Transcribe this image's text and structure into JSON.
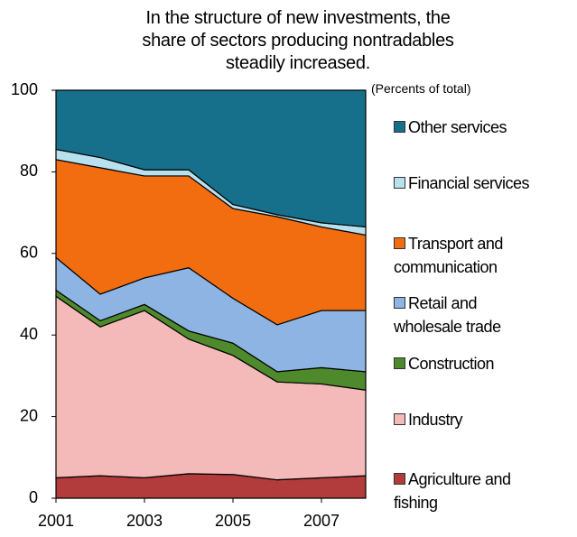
{
  "chart_data": {
    "type": "stacked_area",
    "title": "In the structure of new investments, the share of sectors producing nontradables steadily increased.",
    "subtitle": "(Percents of total)",
    "x": [
      2001,
      2002,
      2003,
      2004,
      2005,
      2006,
      2007,
      2008
    ],
    "xlim": [
      2001,
      2008
    ],
    "xticks": [
      2001,
      2003,
      2005,
      2007
    ],
    "ylim": [
      0,
      100
    ],
    "yticks": [
      0,
      20,
      40,
      60,
      80,
      100
    ],
    "series": [
      {
        "name": "Agriculture and fishing",
        "color": "#b23b3b",
        "values": [
          5,
          5.5,
          5,
          6,
          5.8,
          4.5,
          5,
          5.5
        ]
      },
      {
        "name": "Industry",
        "color": "#f4b9b9",
        "values": [
          44.5,
          36.5,
          41,
          33,
          29.2,
          24,
          23,
          21
        ]
      },
      {
        "name": "Construction",
        "color": "#4e8a2c",
        "values": [
          1.5,
          1.5,
          1.5,
          2,
          3,
          2.5,
          4,
          4.5
        ]
      },
      {
        "name": "Retail and wholesale trade",
        "color": "#8db4e2",
        "values": [
          8,
          6.5,
          6.5,
          15.5,
          11,
          11.5,
          14,
          15
        ]
      },
      {
        "name": "Transport and communication",
        "color": "#f26c10",
        "values": [
          24,
          31,
          25,
          22.5,
          22,
          26.5,
          20.5,
          18.5
        ]
      },
      {
        "name": "Financial services",
        "color": "#b8e1ef",
        "values": [
          2.5,
          2.5,
          1.5,
          1.5,
          1,
          0.5,
          1,
          2
        ]
      },
      {
        "name": "Other services",
        "color": "#17708b",
        "values": [
          14.5,
          16.5,
          19.5,
          19.5,
          28,
          30.5,
          32.5,
          33.5
        ]
      }
    ]
  }
}
